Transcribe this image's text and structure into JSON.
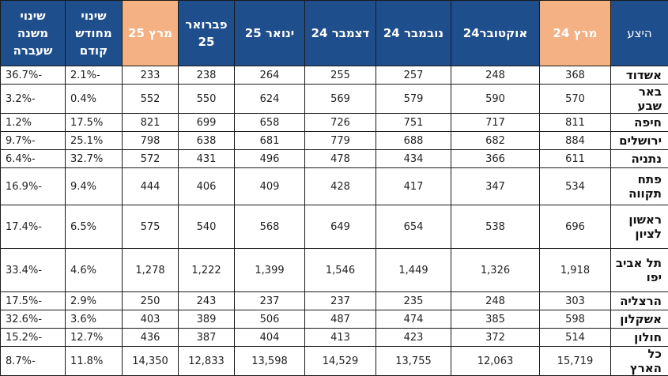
{
  "table": {
    "headers": {
      "region": "היצע",
      "mar24": "מרץ 24",
      "oct24": "אוקטובר24",
      "nov24": "נובמבר 24",
      "dec24": "דצמבר 24",
      "jan25": "ינואר 25",
      "feb25": "פברואר 25",
      "mar25": "מרץ 25",
      "mom": "שינוי מחודש קודם",
      "yoy": "שינוי משנה שעברה"
    },
    "rows": [
      {
        "region": "אשדוד",
        "mar24": "368",
        "oct24": "248",
        "nov24": "257",
        "dec24": "255",
        "jan25": "264",
        "feb25": "238",
        "mar25": "233",
        "mom": "-2.1%",
        "yoy": "-36.7%"
      },
      {
        "region": "באר שבע",
        "mar24": "570",
        "oct24": "590",
        "nov24": "579",
        "dec24": "569",
        "jan25": "624",
        "feb25": "550",
        "mar25": "552",
        "mom": "0.4%",
        "yoy": "-3.2%"
      },
      {
        "region": "חיפה",
        "mar24": "811",
        "oct24": "717",
        "nov24": "751",
        "dec24": "726",
        "jan25": "658",
        "feb25": "699",
        "mar25": "821",
        "mom": "17.5%",
        "yoy": "1.2%"
      },
      {
        "region": "ירושלים",
        "mar24": "884",
        "oct24": "682",
        "nov24": "688",
        "dec24": "779",
        "jan25": "681",
        "feb25": "638",
        "mar25": "798",
        "mom": "25.1%",
        "yoy": "-9.7%"
      },
      {
        "region": "נתניה",
        "mar24": "611",
        "oct24": "366",
        "nov24": "434",
        "dec24": "478",
        "jan25": "496",
        "feb25": "431",
        "mar25": "572",
        "mom": "32.7%",
        "yoy": "-6.4%"
      },
      {
        "region": "פתח תקווה",
        "mar24": "534",
        "oct24": "347",
        "nov24": "417",
        "dec24": "428",
        "jan25": "409",
        "feb25": "406",
        "mar25": "444",
        "mom": "9.4%",
        "yoy": "-16.9%"
      },
      {
        "region": "ראשון לציון",
        "mar24": "696",
        "oct24": "538",
        "nov24": "654",
        "dec24": "649",
        "jan25": "568",
        "feb25": "540",
        "mar25": "575",
        "mom": "6.5%",
        "yoy": "-17.4%"
      },
      {
        "region": "תל אביב יפו",
        "mar24": "1,918",
        "oct24": "1,326",
        "nov24": "1,449",
        "dec24": "1,546",
        "jan25": "1,399",
        "feb25": "1,222",
        "mar25": "1,278",
        "mom": "4.6%",
        "yoy": "-33.4%"
      },
      {
        "region": "הרצליה",
        "mar24": "303",
        "oct24": "248",
        "nov24": "235",
        "dec24": "237",
        "jan25": "237",
        "feb25": "243",
        "mar25": "250",
        "mom": "2.9%",
        "yoy": "-17.5%"
      },
      {
        "region": "אשקלון",
        "mar24": "598",
        "oct24": "385",
        "nov24": "474",
        "dec24": "487",
        "jan25": "506",
        "feb25": "389",
        "mar25": "403",
        "mom": "3.6%",
        "yoy": "-32.6%"
      },
      {
        "region": "חולון",
        "mar24": "514",
        "oct24": "372",
        "nov24": "423",
        "dec24": "413",
        "jan25": "404",
        "feb25": "387",
        "mar25": "436",
        "mom": "12.7%",
        "yoy": "-15.2%"
      },
      {
        "region": "כל הארץ",
        "mar24": "15,719",
        "oct24": "12,063",
        "nov24": "13,755",
        "dec24": "14,529",
        "jan25": "13,598",
        "feb25": "12,833",
        "mar25": "14,350",
        "mom": "11.8%",
        "yoy": "-8.7%"
      }
    ]
  }
}
